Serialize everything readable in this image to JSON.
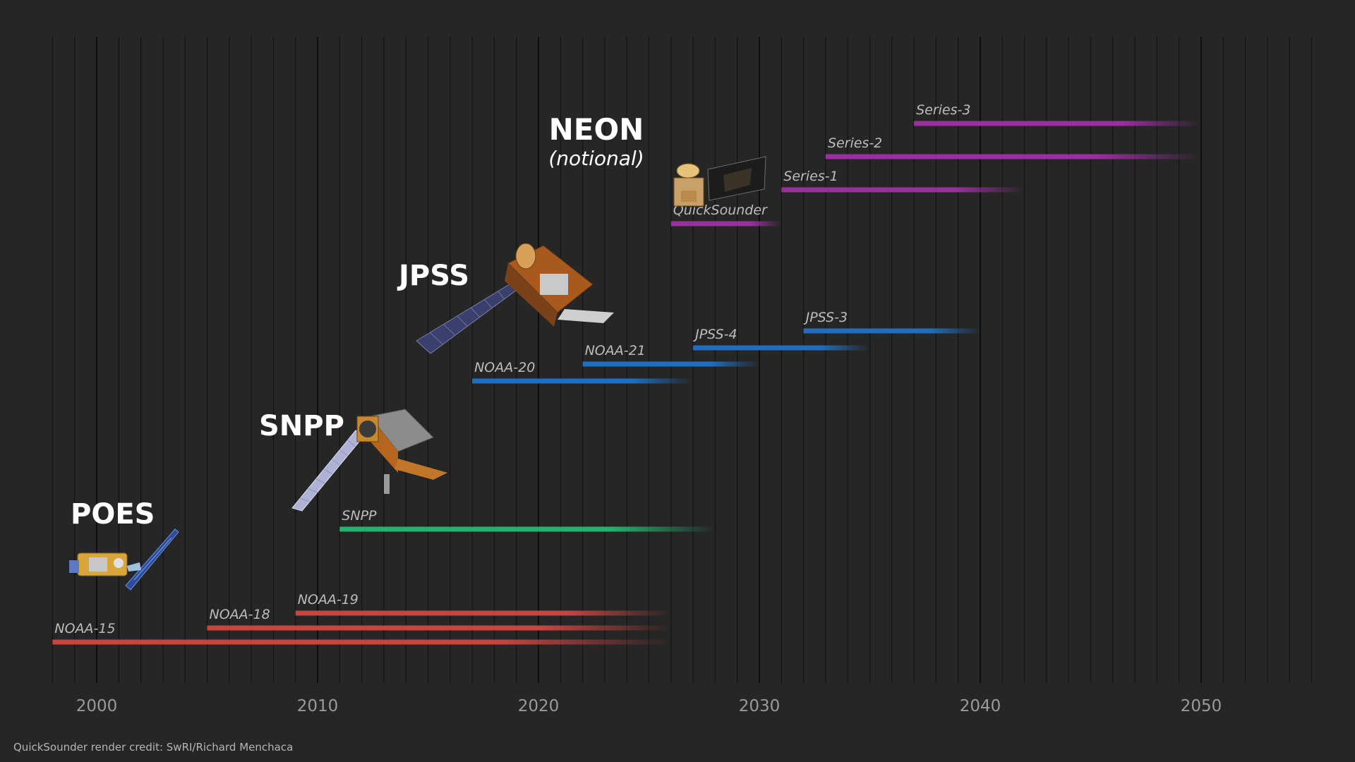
{
  "chart_data": {
    "type": "timeline",
    "title": "",
    "xlabel": "",
    "ylabel": "",
    "xlim": [
      1998,
      2055
    ],
    "x_ticks": [
      2000,
      2010,
      2020,
      2030,
      2040,
      2050
    ],
    "grid": true,
    "colors": {
      "POES": "#c9443f",
      "SNPP": "#25b36b",
      "JPSS": "#1e6fc1",
      "NEON": "#9b2f9f"
    },
    "groups": [
      {
        "name": "POES",
        "icon": "poes-satellite-icon"
      },
      {
        "name": "SNPP",
        "icon": "snpp-satellite-icon"
      },
      {
        "name": "JPSS",
        "icon": "jpss-satellite-icon"
      },
      {
        "name": "NEON",
        "subtitle": "(notional)",
        "icon": "quicksounder-satellite-icon"
      }
    ],
    "missions": [
      {
        "name": "NOAA-15",
        "group": "POES",
        "start": 1998.0,
        "end": 2026.0
      },
      {
        "name": "NOAA-18",
        "group": "POES",
        "start": 2005.0,
        "end": 2026.0
      },
      {
        "name": "NOAA-19",
        "group": "POES",
        "start": 2009.0,
        "end": 2026.0
      },
      {
        "name": "SNPP",
        "group": "SNPP",
        "start": 2011.0,
        "end": 2028.0
      },
      {
        "name": "NOAA-20",
        "group": "JPSS",
        "start": 2017.0,
        "end": 2027.0
      },
      {
        "name": "NOAA-21",
        "group": "JPSS",
        "start": 2022.0,
        "end": 2030.0
      },
      {
        "name": "JPSS-4",
        "group": "JPSS",
        "start": 2027.0,
        "end": 2035.0
      },
      {
        "name": "JPSS-3",
        "group": "JPSS",
        "start": 2032.0,
        "end": 2040.0
      },
      {
        "name": "QuickSounder",
        "group": "NEON",
        "start": 2026.0,
        "end": 2031.0
      },
      {
        "name": "Series-1",
        "group": "NEON",
        "start": 2031.0,
        "end": 2042.0
      },
      {
        "name": "Series-2",
        "group": "NEON",
        "start": 2033.0,
        "end": 2050.0
      },
      {
        "name": "Series-3",
        "group": "NEON",
        "start": 2037.0,
        "end": 2050.0
      }
    ]
  },
  "credit": "QuickSounder render credit: SwRI/Richard Menchaca"
}
